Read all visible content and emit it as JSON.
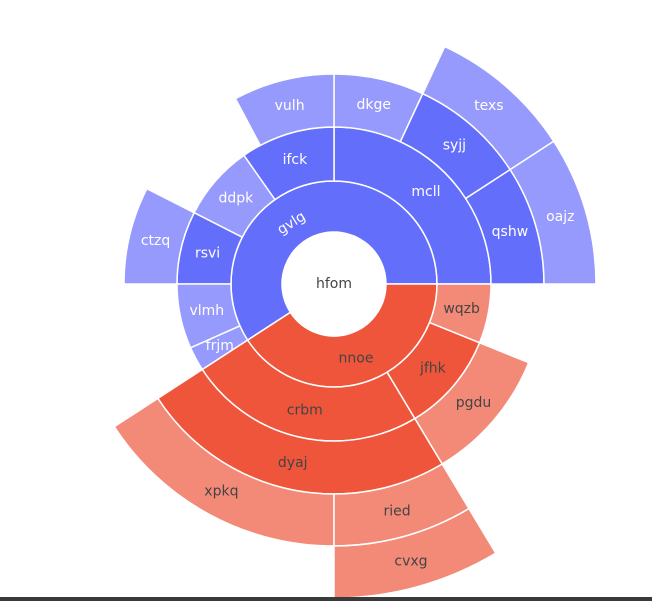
{
  "chart_data": {
    "type": "sunburst",
    "colors": {
      "blue_inner": "#636efa",
      "blue_outer": "#959afc",
      "red_inner": "#ef553b",
      "red_outer": "#f38a78",
      "label_light": "#ffffff",
      "label_dark": "#444444"
    },
    "root": {
      "label": "hfom"
    },
    "nodes": [
      {
        "id": "gvlg",
        "label": "gvlg",
        "parent": "hfom",
        "depth": 1,
        "group": "blue",
        "a0": 0,
        "a1": 213,
        "r_out": 103
      },
      {
        "id": "nnoe",
        "label": "nnoe",
        "parent": "hfom",
        "depth": 1,
        "group": "red",
        "a0": 213,
        "a1": 360,
        "r_out": 103
      },
      {
        "id": "mcll",
        "label": "mcll",
        "parent": "gvlg",
        "depth": 2,
        "group": "blue",
        "a0": 0,
        "a1": 90,
        "r_out": 157
      },
      {
        "id": "ifck",
        "label": "ifck",
        "parent": "gvlg",
        "depth": 2,
        "group": "blue",
        "a0": 90,
        "a1": 125,
        "r_out": 157
      },
      {
        "id": "ddpk",
        "label": "ddpk",
        "parent": "gvlg",
        "depth": 2,
        "group": "blue",
        "a0": 125,
        "a1": 153,
        "r_out": 103
      },
      {
        "id": "rsvi",
        "label": "rsvi",
        "parent": "gvlg",
        "depth": 2,
        "group": "blue",
        "a0": 153,
        "a1": 180,
        "r_out": 157
      },
      {
        "id": "vlmh",
        "label": "vlmh",
        "parent": "gvlg",
        "depth": 2,
        "group": "blue",
        "a0": 180,
        "a1": 204,
        "r_out": 103
      },
      {
        "id": "frjm",
        "label": "frjm",
        "parent": "gvlg",
        "depth": 2,
        "group": "blue",
        "a0": 204,
        "a1": 213,
        "r_out": 103
      },
      {
        "id": "wqzb",
        "label": "wqzb",
        "parent": "nnoe",
        "depth": 2,
        "group": "red",
        "a0": 338,
        "a1": 360,
        "r_out": 103
      },
      {
        "id": "jfhk",
        "label": "jfhk",
        "parent": "nnoe",
        "depth": 2,
        "group": "red",
        "a0": 301,
        "a1": 338,
        "r_out": 157
      },
      {
        "id": "crbm",
        "label": "crbm",
        "parent": "nnoe",
        "depth": 2,
        "group": "red",
        "a0": 213,
        "a1": 301,
        "r_out": 157
      },
      {
        "id": "dkge",
        "label": "dkge",
        "parent": "mcll",
        "depth": 3,
        "group": "blue",
        "a0": 65,
        "a1": 90,
        "r_out": 103
      },
      {
        "id": "syjj",
        "label": "syjj",
        "parent": "mcll",
        "depth": 3,
        "group": "blue",
        "a0": 33,
        "a1": 65,
        "r_out": 157
      },
      {
        "id": "qshw",
        "label": "qshw",
        "parent": "mcll",
        "depth": 3,
        "group": "blue",
        "a0": 0,
        "a1": 33,
        "r_out": 157
      },
      {
        "id": "vulh",
        "label": "vulh",
        "parent": "ifck",
        "depth": 3,
        "group": "blue",
        "a0": 90,
        "a1": 118,
        "r_out": 103
      },
      {
        "id": "ctzq",
        "label": "ctzq",
        "parent": "rsvi",
        "depth": 3,
        "group": "blue",
        "a0": 153,
        "a1": 180,
        "r_out": 103
      },
      {
        "id": "pgdu",
        "label": "pgdu",
        "parent": "jfhk",
        "depth": 3,
        "group": "red",
        "a0": 301,
        "a1": 338,
        "r_out": 103
      },
      {
        "id": "dyaj",
        "label": "dyaj",
        "parent": "crbm",
        "depth": 3,
        "group": "red",
        "a0": 213,
        "a1": 301,
        "r_out": 157
      },
      {
        "id": "texs",
        "label": "texs",
        "parent": "syjj",
        "depth": 4,
        "group": "blue",
        "a0": 33,
        "a1": 65,
        "r_out": 103
      },
      {
        "id": "oajz",
        "label": "oajz",
        "parent": "qshw",
        "depth": 4,
        "group": "blue",
        "a0": 0,
        "a1": 33,
        "r_out": 103
      },
      {
        "id": "xpkq",
        "label": "xpkq",
        "parent": "dyaj",
        "depth": 4,
        "group": "red",
        "a0": 213,
        "a1": 270,
        "r_out": 103
      },
      {
        "id": "ried",
        "label": "ried",
        "parent": "dyaj",
        "depth": 4,
        "group": "red",
        "a0": 270,
        "a1": 301,
        "r_out": 157
      },
      {
        "id": "cvxg",
        "label": "cvxg",
        "parent": "ried",
        "depth": 5,
        "group": "red",
        "a0": 270,
        "a1": 301,
        "r_out": 103
      }
    ]
  }
}
